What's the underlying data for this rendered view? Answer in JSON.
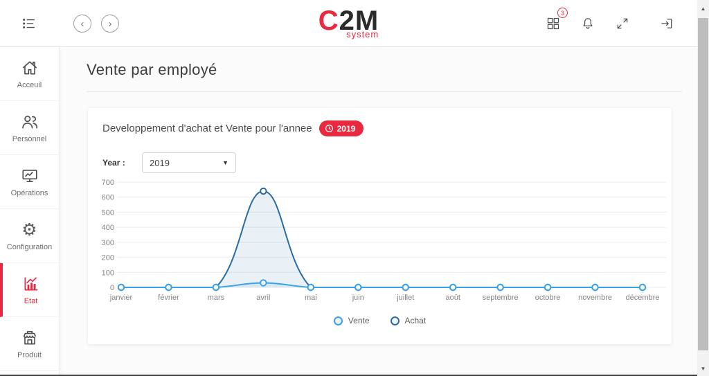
{
  "colors": {
    "accent_red": "#e8293f",
    "vente_blue": "#36a2eb",
    "achat_blue": "#2b6ca3",
    "grid": "#ececec",
    "tick_text": "#848484"
  },
  "header": {
    "logo_part1": "C",
    "logo_part2": "2M",
    "logo_sub": "system",
    "notifications_count": "3",
    "nav_back": "‹",
    "nav_forward": "›"
  },
  "scrollbar": {
    "up_arrow": "▲",
    "down_arrow": "▼"
  },
  "sidebar": {
    "items": [
      {
        "label": "Acceuil",
        "icon": "home-icon",
        "active": false
      },
      {
        "label": "Personnel",
        "icon": "people-icon",
        "active": false
      },
      {
        "label": "Opérations",
        "icon": "monitor-icon",
        "active": false
      },
      {
        "label": "Configuration",
        "icon": "gear-icon",
        "active": false
      },
      {
        "label": "Etat",
        "icon": "bar-chart-icon",
        "active": true
      },
      {
        "label": "Produit",
        "icon": "store-icon",
        "active": false
      }
    ]
  },
  "page": {
    "title": "Vente par employé"
  },
  "card": {
    "title": "Developpement d'achat et Vente pour l'annee",
    "badge_year": "2019",
    "year_label": "Year :",
    "year_value": "2019",
    "year_caret": "▼"
  },
  "chart_data": {
    "type": "line",
    "categories": [
      "janvier",
      "février",
      "mars",
      "avril",
      "mai",
      "juin",
      "juillet",
      "août",
      "septembre",
      "octobre",
      "novembre",
      "décembre"
    ],
    "series": [
      {
        "name": "Vente",
        "color": "#36a2eb",
        "fill_opacity": 0.08,
        "values": [
          0,
          0,
          0,
          30,
          0,
          0,
          0,
          0,
          0,
          0,
          0,
          0
        ]
      },
      {
        "name": "Achat",
        "color": "#2b6ca3",
        "fill_opacity": 0.1,
        "values": [
          0,
          0,
          0,
          640,
          0,
          0,
          0,
          0,
          0,
          0,
          0,
          0
        ]
      }
    ],
    "ylim": [
      0,
      700
    ],
    "ytick_step": 100,
    "grid": true,
    "legend_position": "bottom"
  }
}
